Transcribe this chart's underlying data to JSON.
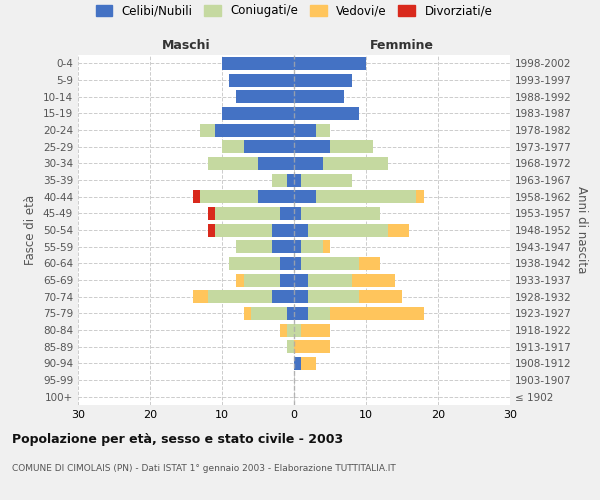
{
  "age_groups": [
    "100+",
    "95-99",
    "90-94",
    "85-89",
    "80-84",
    "75-79",
    "70-74",
    "65-69",
    "60-64",
    "55-59",
    "50-54",
    "45-49",
    "40-44",
    "35-39",
    "30-34",
    "25-29",
    "20-24",
    "15-19",
    "10-14",
    "5-9",
    "0-4"
  ],
  "birth_years": [
    "≤ 1902",
    "1903-1907",
    "1908-1912",
    "1913-1917",
    "1918-1922",
    "1923-1927",
    "1928-1932",
    "1933-1937",
    "1938-1942",
    "1943-1947",
    "1948-1952",
    "1953-1957",
    "1958-1962",
    "1963-1967",
    "1968-1972",
    "1973-1977",
    "1978-1982",
    "1983-1987",
    "1988-1992",
    "1993-1997",
    "1998-2002"
  ],
  "maschi": {
    "celibi": [
      0,
      0,
      0,
      0,
      0,
      1,
      3,
      2,
      2,
      3,
      3,
      2,
      5,
      1,
      5,
      7,
      11,
      10,
      8,
      9,
      10
    ],
    "coniugati": [
      0,
      0,
      0,
      1,
      1,
      5,
      9,
      5,
      7,
      5,
      8,
      9,
      8,
      2,
      7,
      3,
      2,
      0,
      0,
      0,
      0
    ],
    "vedovi": [
      0,
      0,
      0,
      0,
      1,
      1,
      2,
      1,
      0,
      0,
      0,
      0,
      0,
      0,
      0,
      0,
      0,
      0,
      0,
      0,
      0
    ],
    "divorziati": [
      0,
      0,
      0,
      0,
      0,
      0,
      0,
      0,
      0,
      0,
      1,
      1,
      1,
      0,
      0,
      0,
      0,
      0,
      0,
      0,
      0
    ]
  },
  "femmine": {
    "nubili": [
      0,
      0,
      1,
      0,
      0,
      2,
      2,
      2,
      1,
      1,
      2,
      1,
      3,
      1,
      4,
      5,
      3,
      9,
      7,
      8,
      10
    ],
    "coniugate": [
      0,
      0,
      0,
      0,
      1,
      3,
      7,
      6,
      8,
      3,
      11,
      11,
      14,
      7,
      9,
      6,
      2,
      0,
      0,
      0,
      0
    ],
    "vedove": [
      0,
      0,
      2,
      5,
      4,
      13,
      6,
      6,
      3,
      1,
      3,
      0,
      1,
      0,
      0,
      0,
      0,
      0,
      0,
      0,
      0
    ],
    "divorziate": [
      0,
      0,
      0,
      0,
      0,
      0,
      0,
      0,
      0,
      0,
      0,
      0,
      0,
      0,
      0,
      0,
      0,
      0,
      0,
      0,
      0
    ]
  },
  "colors": {
    "celibi_nubili": "#4472c4",
    "coniugati": "#c5d9a0",
    "vedovi": "#ffc55c",
    "divorziati": "#d9291c"
  },
  "title": "Popolazione per età, sesso e stato civile - 2003",
  "subtitle": "COMUNE DI CIMOLAIS (PN) - Dati ISTAT 1° gennaio 2003 - Elaborazione TUTTITALIA.IT",
  "xlabel_left": "Maschi",
  "xlabel_right": "Femmine",
  "ylabel_left": "Fasce di età",
  "ylabel_right": "Anni di nascita",
  "xlim": 30,
  "legend_labels": [
    "Celibi/Nubili",
    "Coniugati/e",
    "Vedovi/e",
    "Divorziati/e"
  ],
  "bg_color": "#f0f0f0",
  "plot_bg_color": "#ffffff"
}
